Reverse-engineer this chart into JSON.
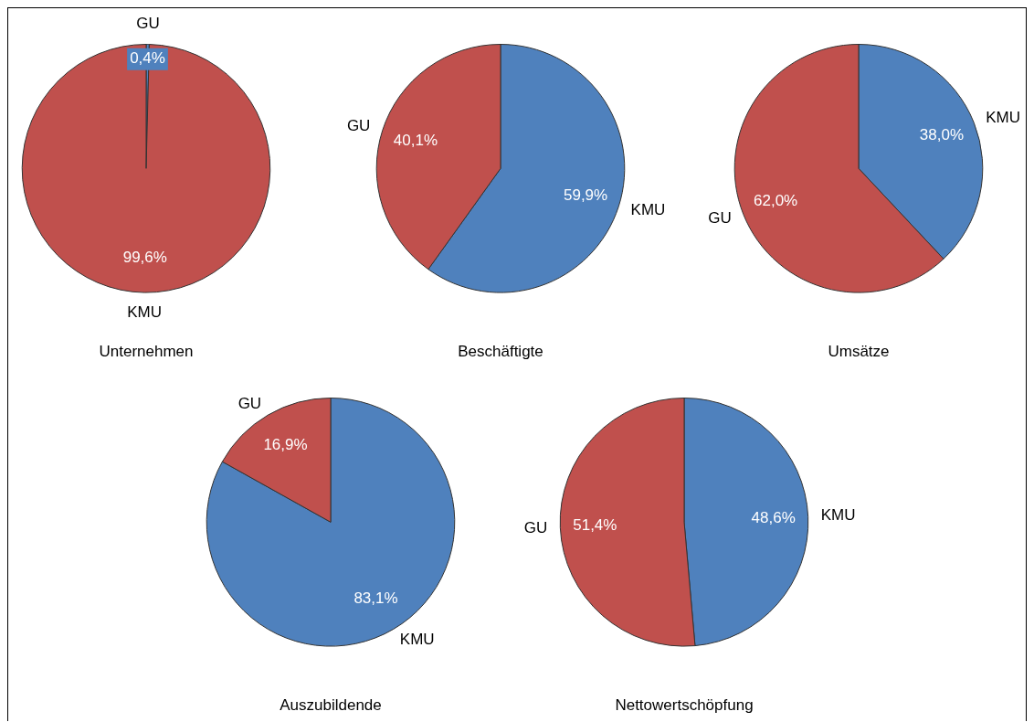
{
  "chart_data": [
    {
      "type": "pie",
      "title": "Unternehmen",
      "categories": [
        "GU",
        "KMU"
      ],
      "values": [
        0.4,
        99.6
      ],
      "colors": [
        "#4f81bd",
        "#c0504d"
      ],
      "value_labels": [
        "0,4%",
        "99,6%"
      ]
    },
    {
      "type": "pie",
      "title": "Beschäftigte",
      "categories": [
        "KMU",
        "GU"
      ],
      "values": [
        59.9,
        40.1
      ],
      "colors": [
        "#4f81bd",
        "#c0504d"
      ],
      "value_labels": [
        "59,9%",
        "40,1%"
      ]
    },
    {
      "type": "pie",
      "title": "Umsätze",
      "categories": [
        "KMU",
        "GU"
      ],
      "values": [
        38.0,
        62.0
      ],
      "colors": [
        "#4f81bd",
        "#c0504d"
      ],
      "value_labels": [
        "38,0%",
        "62,0%"
      ]
    },
    {
      "type": "pie",
      "title": "Auszubildende",
      "categories": [
        "KMU",
        "GU"
      ],
      "values": [
        83.1,
        16.9
      ],
      "colors": [
        "#4f81bd",
        "#c0504d"
      ],
      "value_labels": [
        "83,1%",
        "16,9%"
      ]
    },
    {
      "type": "pie",
      "title": "Nettowertschöpfung",
      "categories": [
        "KMU",
        "GU"
      ],
      "values": [
        48.6,
        51.4
      ],
      "colors": [
        "#4f81bd",
        "#c0504d"
      ],
      "value_labels": [
        "48,6%",
        "51,4%"
      ]
    }
  ]
}
